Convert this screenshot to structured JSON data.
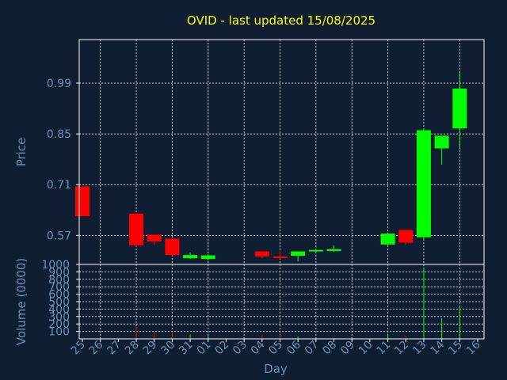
{
  "chart_data": [
    {
      "type": "candlestick",
      "title": "OVID - last updated 15/08/2025",
      "ylabel": "Price",
      "xlabel": "Day",
      "yticks": [
        0.57,
        0.71,
        0.85,
        0.99
      ],
      "yticklabels": [
        "0.57",
        "0.71",
        "0.85",
        "0.99"
      ],
      "ylim": [
        0.49,
        1.11
      ],
      "grid": true,
      "colors": {
        "up": "#00ff00",
        "down": "#ff0000",
        "background": "#0f1e33",
        "text": "#6f8fb3",
        "title": "#ffff00"
      },
      "x": [
        "25",
        "26",
        "27",
        "28",
        "29",
        "30",
        "31",
        "01",
        "02",
        "03",
        "04",
        "05",
        "06",
        "07",
        "08",
        "09",
        "10",
        "11",
        "12",
        "13",
        "14",
        "15",
        "16"
      ],
      "candles": [
        {
          "day": "25",
          "open": 0.705,
          "high": 0.705,
          "low": 0.623,
          "close": 0.623
        },
        {
          "day": "28",
          "open": 0.63,
          "high": 0.63,
          "low": 0.54,
          "close": 0.543
        },
        {
          "day": "29",
          "open": 0.572,
          "high": 0.572,
          "low": 0.543,
          "close": 0.553
        },
        {
          "day": "30",
          "open": 0.561,
          "high": 0.561,
          "low": 0.513,
          "close": 0.516
        },
        {
          "day": "31",
          "open": 0.507,
          "high": 0.523,
          "low": 0.505,
          "close": 0.516
        },
        {
          "day": "01",
          "open": 0.505,
          "high": 0.518,
          "low": 0.5,
          "close": 0.515
        },
        {
          "day": "04",
          "open": 0.526,
          "high": 0.526,
          "low": 0.508,
          "close": 0.512
        },
        {
          "day": "05",
          "open": 0.512,
          "high": 0.527,
          "low": 0.505,
          "close": 0.509
        },
        {
          "day": "06",
          "open": 0.514,
          "high": 0.526,
          "low": 0.498,
          "close": 0.526
        },
        {
          "day": "07",
          "open": 0.527,
          "high": 0.533,
          "low": 0.521,
          "close": 0.53
        },
        {
          "day": "08",
          "open": 0.527,
          "high": 0.543,
          "low": 0.525,
          "close": 0.532
        },
        {
          "day": "11",
          "open": 0.545,
          "high": 0.575,
          "low": 0.54,
          "close": 0.575
        },
        {
          "day": "12",
          "open": 0.585,
          "high": 0.585,
          "low": 0.544,
          "close": 0.55
        },
        {
          "day": "13",
          "open": 0.565,
          "high": 0.865,
          "low": 0.555,
          "close": 0.86
        },
        {
          "day": "14",
          "open": 0.81,
          "high": 0.845,
          "low": 0.765,
          "close": 0.845
        },
        {
          "day": "15",
          "open": 0.865,
          "high": 1.02,
          "low": 0.81,
          "close": 0.975
        }
      ]
    },
    {
      "type": "bar",
      "ylabel": "Volume (0000)",
      "yticks": [
        100,
        200,
        300,
        400,
        500,
        600,
        700,
        800,
        900,
        1000
      ],
      "yticklabels": [
        "100",
        "200",
        "300",
        "400",
        "500",
        "600",
        "700",
        "800",
        "900",
        "1000"
      ],
      "ylim": [
        0,
        1000
      ],
      "grid": true,
      "bars": [
        {
          "day": "28",
          "value": 160,
          "color": "#ff0000"
        },
        {
          "day": "29",
          "value": 90,
          "color": "#ff0000"
        },
        {
          "day": "30",
          "value": 100,
          "color": "#ff0000"
        },
        {
          "day": "31",
          "value": 60,
          "color": "#00ff00"
        },
        {
          "day": "01",
          "value": 40,
          "color": "#00ff00"
        },
        {
          "day": "04",
          "value": 60,
          "color": "#ff0000"
        },
        {
          "day": "05",
          "value": 50,
          "color": "#ff0000"
        },
        {
          "day": "06",
          "value": 30,
          "color": "#00ff00"
        },
        {
          "day": "07",
          "value": 20,
          "color": "#00ff00"
        },
        {
          "day": "11",
          "value": 50,
          "color": "#00ff00"
        },
        {
          "day": "12",
          "value": 40,
          "color": "#ff0000"
        },
        {
          "day": "13",
          "value": 960,
          "color": "#00ff00"
        },
        {
          "day": "14",
          "value": 280,
          "color": "#00ff00"
        },
        {
          "day": "15",
          "value": 450,
          "color": "#00ff00"
        }
      ]
    }
  ]
}
